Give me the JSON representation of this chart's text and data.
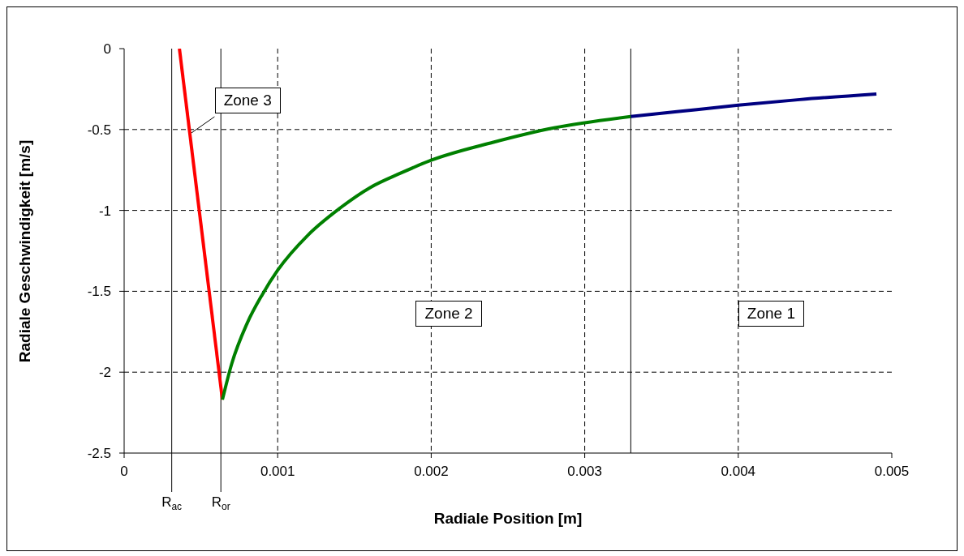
{
  "chart_data": {
    "type": "line",
    "xlabel": "Radiale Position [m]",
    "ylabel": "Radiale Geschwindigkeit [m/s]",
    "xlim": [
      0,
      0.005
    ],
    "xticks": [
      0,
      0.001,
      0.002,
      0.003,
      0.004,
      0.005
    ],
    "ylim": [
      -2.5,
      0
    ],
    "yticks": [
      0,
      -0.5,
      -1,
      -1.5,
      -2,
      -2.5
    ],
    "grid": true,
    "series": [
      {
        "color": "#ff0000",
        "x": [
          0.00036,
          0.00064
        ],
        "values": [
          0,
          -2.17
        ]
      },
      {
        "color": "#008000",
        "x": [
          0.00064,
          0.0007,
          0.0008,
          0.0009,
          0.001,
          0.0012,
          0.0014,
          0.0016,
          0.0018,
          0.002,
          0.0024,
          0.0028,
          0.0033
        ],
        "values": [
          -2.17,
          -1.95,
          -1.7,
          -1.52,
          -1.37,
          -1.15,
          -0.99,
          -0.86,
          -0.77,
          -0.69,
          -0.58,
          -0.49,
          -0.42
        ]
      },
      {
        "color": "#000080",
        "x": [
          0.0033,
          0.0036,
          0.004,
          0.0044,
          0.0049
        ],
        "values": [
          -0.42,
          -0.39,
          -0.35,
          -0.315,
          -0.28
        ]
      }
    ],
    "ref_lines": [
      {
        "axis": "x",
        "value": 0.00031,
        "label": "R$_{ac}$"
      },
      {
        "axis": "x",
        "value": 0.00063,
        "label": "R$_{or}$"
      },
      {
        "axis": "x",
        "value": 0.0033
      }
    ],
    "annotations": [
      "Zone 3",
      "Zone 2",
      "Zone 1"
    ]
  }
}
